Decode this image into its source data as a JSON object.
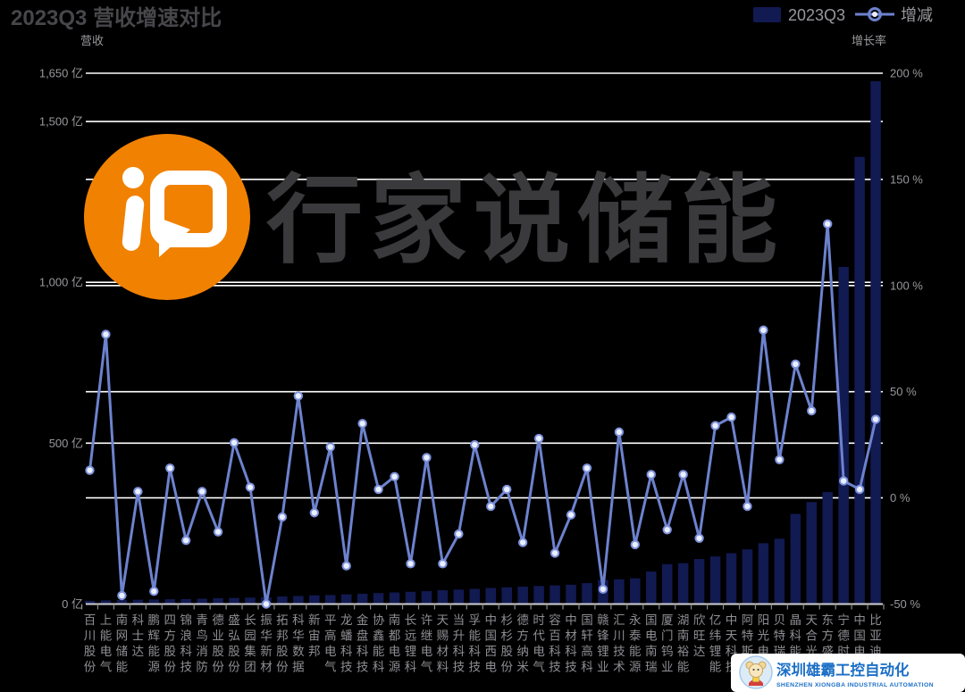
{
  "title": "2023Q3 营收增速对比",
  "legend": {
    "bar_label": "2023Q3",
    "line_label": "增减"
  },
  "axes": {
    "left_title": "营收",
    "right_title": "增长率",
    "left_ticks": [
      {
        "label": "1,650 亿",
        "value": 1650
      },
      {
        "label": "1,500 亿",
        "value": 1500
      },
      {
        "label": "1,000 亿",
        "value": 1000
      },
      {
        "label": "500 亿",
        "value": 500
      },
      {
        "label": "0 亿",
        "value": 0
      }
    ],
    "right_ticks": [
      {
        "label": "200 %",
        "value": 200
      },
      {
        "label": "150 %",
        "value": 150
      },
      {
        "label": "100 %",
        "value": 100
      },
      {
        "label": "50 %",
        "value": 50
      },
      {
        "label": "0 %",
        "value": 0
      },
      {
        "label": "-50 %",
        "value": -50
      }
    ]
  },
  "chart_data": {
    "type": "combo-bar-line",
    "title": "2023Q3 营收增速对比",
    "categories": [
      "百川股份",
      "上能电气",
      "南网储能",
      "科士达",
      "鹏辉能源",
      "四方股份",
      "锦浪科技",
      "青鸟消防",
      "德业股份",
      "盛弘股份",
      "长园集团",
      "振华新材",
      "拓邦股份",
      "科华数据",
      "新宙邦",
      "平高电气",
      "龙蟠科技",
      "金盘科技",
      "协鑫能科",
      "南都电源",
      "长远锂科",
      "许继电气",
      "天赐材料",
      "当升科技",
      "孚能科技",
      "中国西电",
      "杉杉股份",
      "德方纳米",
      "时代电气",
      "容百科技",
      "中材科技",
      "国轩高科",
      "赣锋锂业",
      "汇川技术",
      "永泰能源",
      "国电南瑞",
      "厦门钨业",
      "湖南裕能",
      "欣旺达",
      "亿纬锂能",
      "中天科技",
      "阿特斯",
      "阳光电源",
      "贝特瑞",
      "晶科能源",
      "天合光能",
      "东方盛虹",
      "宁德时代",
      "中国电建",
      "比亚迪"
    ],
    "series": [
      {
        "name": "2023Q3",
        "type": "bar",
        "unit": "亿",
        "axis": "left",
        "values": [
          10,
          11.5,
          12.5,
          13.5,
          14,
          15,
          15.5,
          16.5,
          18,
          19,
          20,
          21,
          23.5,
          25,
          27,
          28,
          30,
          32,
          34,
          36,
          38,
          40,
          43,
          45,
          47,
          50,
          52,
          54,
          56,
          58,
          60,
          65,
          75,
          77,
          80,
          101,
          124,
          127,
          140,
          148,
          158,
          170,
          189,
          203,
          280,
          317,
          348,
          1048,
          1390,
          1625
        ]
      },
      {
        "name": "增减",
        "type": "line",
        "unit": "%",
        "axis": "right",
        "values": [
          13,
          77,
          -46,
          3,
          -44,
          14,
          -20,
          3,
          -16,
          26,
          5,
          -50,
          -9,
          48,
          -7,
          24,
          -32,
          35,
          4,
          10,
          -31,
          19,
          -31,
          -17,
          25,
          -4,
          4,
          -21,
          28,
          -26,
          -8,
          14,
          -43,
          31,
          -22,
          11,
          -15,
          11,
          -19,
          34,
          38,
          -4,
          79,
          18,
          63,
          41,
          129,
          8,
          4,
          37
        ]
      }
    ],
    "ylim_left": [
      0,
      1650
    ],
    "ylim_right": [
      -50,
      200
    ],
    "xlabel": "",
    "ylabel_left": "营收",
    "ylabel_right": "增长率",
    "grid": "on",
    "legend_position": "top-right"
  },
  "watermark": {
    "brand_text": "行家说储能"
  },
  "footer_logo": {
    "cn": "深圳雄霸工控自动化",
    "en": "SHENZHEN XIONGBA INDUSTRIAL AUTOMATION"
  },
  "colors": {
    "background": "#000000",
    "bar": "#121A52",
    "line": "#6D82CE",
    "dot_fill": "#EAEFFE",
    "dot_ring": "#7E92DC",
    "grid": "#FFFFFF",
    "axis_text": "#98989D",
    "title_text": "#47474B",
    "watermark_text": "#3A3A3C",
    "watermark_orange": "#F18101",
    "footer_blue": "#1B6FC6"
  }
}
